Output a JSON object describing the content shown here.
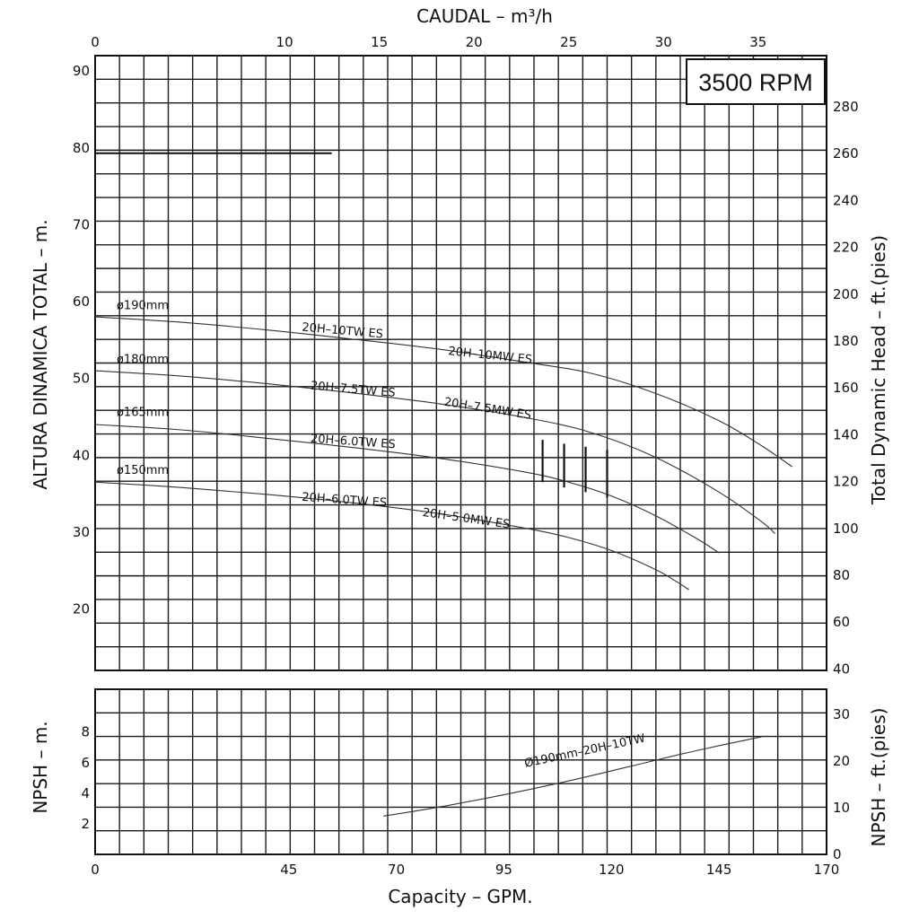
{
  "chart_data": [
    {
      "type": "line",
      "title": "3500 RPM",
      "top_axis": {
        "label": "CAUDAL  – m³/h",
        "ticks": [
          0,
          10,
          15,
          20,
          25,
          30,
          35
        ]
      },
      "xlabel": "Capacity – GPM.",
      "ylabel": "ALTURA DINAMICA TOTAL – m.",
      "ylabel_right": "Total Dynamic Head – ft.(pies)",
      "xlim": [
        0,
        170
      ],
      "ylim": [
        12,
        92
      ],
      "x_ticks": [
        0,
        45,
        70,
        95,
        120,
        145,
        170
      ],
      "y_ticks": [
        20,
        30,
        40,
        50,
        60,
        70,
        80,
        90
      ],
      "y_ticks_right": [
        40,
        60,
        80,
        100,
        120,
        140,
        160,
        180,
        200,
        220,
        240,
        260,
        280
      ],
      "grid": true,
      "reference_line": {
        "y": 79.3,
        "x": [
          0,
          55
        ]
      },
      "series": [
        {
          "name": "ø190mm",
          "x": [
            0,
            20,
            40,
            60,
            80,
            100,
            115,
            130,
            145,
            155,
            162
          ],
          "y": [
            58,
            57.3,
            56.3,
            55.1,
            53.8,
            52.1,
            50.7,
            48.1,
            44.5,
            41.2,
            38.5
          ]
        },
        {
          "name": "ø180mm",
          "x": [
            0,
            20,
            40,
            60,
            80,
            100,
            115,
            130,
            145,
            155,
            158
          ],
          "y": [
            51,
            50.3,
            49.3,
            48.1,
            46.7,
            44.9,
            43,
            39.8,
            35.2,
            31.3,
            29.8
          ]
        },
        {
          "name": "ø165mm",
          "x": [
            0,
            20,
            40,
            60,
            80,
            100,
            110,
            120,
            130,
            140,
            145
          ],
          "y": [
            44,
            43.3,
            42.2,
            41,
            39.6,
            37.8,
            36.5,
            34.7,
            32.2,
            29.1,
            27.3
          ]
        },
        {
          "name": "ø150mm",
          "x": [
            0,
            20,
            40,
            60,
            80,
            100,
            110,
            120,
            130,
            135,
            138
          ],
          "y": [
            36.5,
            35.8,
            34.9,
            33.8,
            32.4,
            30.5,
            29.3,
            27.6,
            25.2,
            23.6,
            22.5
          ]
        }
      ],
      "markers": [
        {
          "x": 104,
          "y": [
            36.5,
            42
          ]
        },
        {
          "x": 109,
          "y": [
            35.8,
            41.5
          ]
        },
        {
          "x": 114,
          "y": [
            35.2,
            41.1
          ]
        },
        {
          "x": 119,
          "y": [
            34.5,
            40.7
          ]
        }
      ],
      "annotations": [
        {
          "text": "ø190mm",
          "x": 5,
          "y": 59,
          "angle": 0
        },
        {
          "text": "ø180mm",
          "x": 5,
          "y": 52,
          "angle": 0
        },
        {
          "text": "ø165mm",
          "x": 5,
          "y": 45.1,
          "angle": 0
        },
        {
          "text": "ø150mm",
          "x": 5,
          "y": 37.6,
          "angle": 0
        },
        {
          "text": "20H–10TW ES",
          "x": 48,
          "y": 56.2,
          "angle": 5
        },
        {
          "text": "20H–10MW ES",
          "x": 82,
          "y": 53.1,
          "angle": 6
        },
        {
          "text": "20H–7.5TW ES",
          "x": 50,
          "y": 48.6,
          "angle": 5
        },
        {
          "text": "20H–7.5MW ES",
          "x": 81,
          "y": 46.5,
          "angle": 9
        },
        {
          "text": "20H–6.0TW ES",
          "x": 50,
          "y": 41.7,
          "angle": 4
        },
        {
          "text": "20H–6.0TW ES",
          "x": 48,
          "y": 34.1,
          "angle": 4
        },
        {
          "text": "20H–5.0MW ES",
          "x": 76,
          "y": 32.1,
          "angle": 8
        }
      ]
    },
    {
      "type": "line",
      "ylabel": "NPSH – m.",
      "ylabel_right": "NPSH – ft.(pies)",
      "xlim": [
        0,
        170
      ],
      "ylim": [
        0,
        10.8
      ],
      "y_ticks": [
        2,
        4,
        6,
        8
      ],
      "y_ticks_right": [
        0,
        10,
        20,
        30
      ],
      "grid": true,
      "series": [
        {
          "name": "Ø190mm–20H–10TW",
          "x": [
            67,
            80,
            95,
            110,
            125,
            140,
            155
          ],
          "y": [
            2.5,
            3.1,
            3.9,
            4.8,
            5.8,
            6.8,
            7.7
          ]
        }
      ],
      "annotations": [
        {
          "text": "Ø190mm–20H–10TW",
          "x": 100,
          "y": 5.7,
          "angle": -12
        }
      ]
    }
  ]
}
